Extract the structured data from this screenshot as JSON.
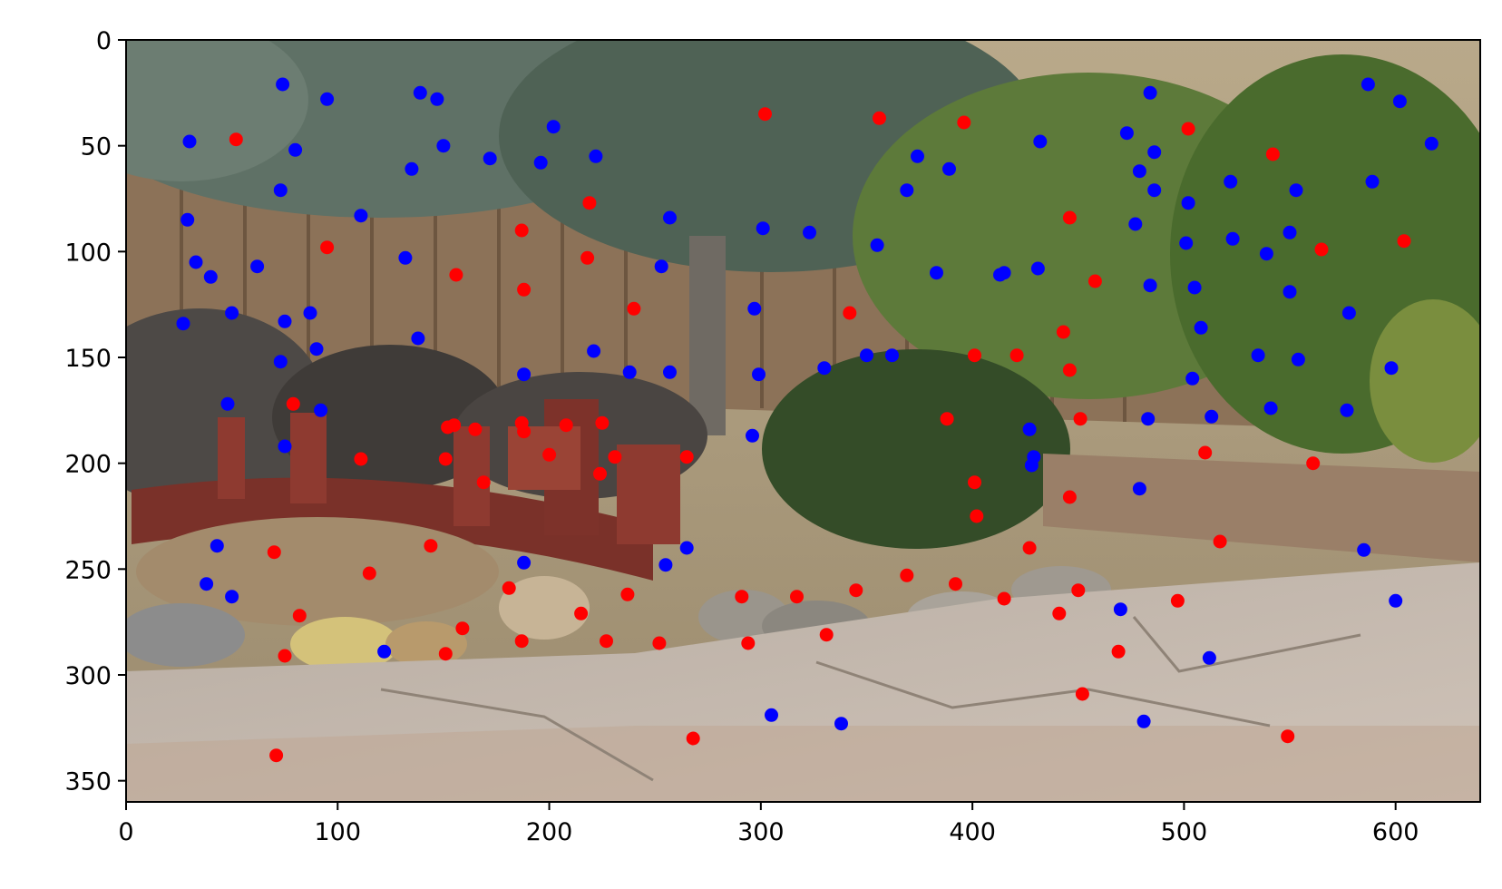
{
  "chart_data": {
    "type": "scatter",
    "title": "",
    "xlabel": "",
    "ylabel": "",
    "xlim": [
      0,
      640
    ],
    "ylim": [
      360,
      0
    ],
    "y_inverted": true,
    "grid": false,
    "background": "photograph of a backyard Japanese garden with a red wooden bridge, lantern, shrubs, fence, tree and stone patio",
    "x_ticks": [
      0,
      100,
      200,
      300,
      400,
      500,
      600
    ],
    "y_ticks": [
      0,
      50,
      100,
      150,
      200,
      250,
      300,
      350
    ],
    "x_tick_labels": [
      "0",
      "100",
      "200",
      "300",
      "400",
      "500",
      "600"
    ],
    "y_tick_labels": [
      "0",
      "50",
      "100",
      "150",
      "200",
      "250",
      "300",
      "350"
    ],
    "series": [
      {
        "color": "#ff0000",
        "points": [
          [
            52,
            47
          ],
          [
            95,
            98
          ],
          [
            156,
            111
          ],
          [
            187,
            90
          ],
          [
            188,
            118
          ],
          [
            219,
            77
          ],
          [
            218,
            103
          ],
          [
            240,
            127
          ],
          [
            302,
            35
          ],
          [
            356,
            37
          ],
          [
            396,
            39
          ],
          [
            342,
            129
          ],
          [
            401,
            149
          ],
          [
            421,
            149
          ],
          [
            446,
            84
          ],
          [
            458,
            114
          ],
          [
            443,
            138
          ],
          [
            446,
            156
          ],
          [
            451,
            179
          ],
          [
            502,
            42
          ],
          [
            542,
            54
          ],
          [
            565,
            99
          ],
          [
            604,
            95
          ],
          [
            388,
            179
          ],
          [
            401,
            209
          ],
          [
            402,
            225
          ],
          [
            446,
            216
          ],
          [
            510,
            195
          ],
          [
            561,
            200
          ],
          [
            79,
            172
          ],
          [
            111,
            198
          ],
          [
            152,
            183
          ],
          [
            155,
            182
          ],
          [
            165,
            184
          ],
          [
            151,
            198
          ],
          [
            169,
            209
          ],
          [
            187,
            181
          ],
          [
            188,
            185
          ],
          [
            200,
            196
          ],
          [
            208,
            182
          ],
          [
            225,
            181
          ],
          [
            231,
            197
          ],
          [
            224,
            205
          ],
          [
            265,
            197
          ],
          [
            70,
            242
          ],
          [
            115,
            252
          ],
          [
            144,
            239
          ],
          [
            82,
            272
          ],
          [
            75,
            291
          ],
          [
            159,
            278
          ],
          [
            151,
            290
          ],
          [
            181,
            259
          ],
          [
            187,
            284
          ],
          [
            215,
            271
          ],
          [
            237,
            262
          ],
          [
            227,
            284
          ],
          [
            252,
            285
          ],
          [
            291,
            263
          ],
          [
            294,
            285
          ],
          [
            317,
            263
          ],
          [
            331,
            281
          ],
          [
            345,
            260
          ],
          [
            369,
            253
          ],
          [
            392,
            257
          ],
          [
            415,
            264
          ],
          [
            427,
            240
          ],
          [
            441,
            271
          ],
          [
            450,
            260
          ],
          [
            469,
            289
          ],
          [
            452,
            309
          ],
          [
            517,
            237
          ],
          [
            497,
            265
          ],
          [
            549,
            329
          ],
          [
            268,
            330
          ],
          [
            71,
            338
          ]
        ]
      },
      {
        "color": "#0000ff",
        "points": [
          [
            74,
            21
          ],
          [
            95,
            28
          ],
          [
            139,
            25
          ],
          [
            147,
            28
          ],
          [
            30,
            48
          ],
          [
            80,
            52
          ],
          [
            150,
            50
          ],
          [
            172,
            56
          ],
          [
            202,
            41
          ],
          [
            196,
            58
          ],
          [
            222,
            55
          ],
          [
            135,
            61
          ],
          [
            73,
            71
          ],
          [
            111,
            83
          ],
          [
            29,
            85
          ],
          [
            257,
            84
          ],
          [
            301,
            89
          ],
          [
            323,
            91
          ],
          [
            374,
            55
          ],
          [
            389,
            61
          ],
          [
            369,
            71
          ],
          [
            432,
            48
          ],
          [
            473,
            44
          ],
          [
            484,
            25
          ],
          [
            486,
            53
          ],
          [
            479,
            62
          ],
          [
            486,
            71
          ],
          [
            502,
            77
          ],
          [
            522,
            67
          ],
          [
            553,
            71
          ],
          [
            589,
            67
          ],
          [
            587,
            21
          ],
          [
            602,
            29
          ],
          [
            617,
            49
          ],
          [
            33,
            105
          ],
          [
            40,
            112
          ],
          [
            62,
            107
          ],
          [
            132,
            103
          ],
          [
            253,
            107
          ],
          [
            355,
            97
          ],
          [
            501,
            96
          ],
          [
            477,
            87
          ],
          [
            523,
            94
          ],
          [
            539,
            101
          ],
          [
            550,
            91
          ],
          [
            27,
            134
          ],
          [
            50,
            129
          ],
          [
            75,
            133
          ],
          [
            87,
            129
          ],
          [
            138,
            141
          ],
          [
            73,
            152
          ],
          [
            90,
            146
          ],
          [
            297,
            127
          ],
          [
            383,
            110
          ],
          [
            413,
            111
          ],
          [
            415,
            110
          ],
          [
            431,
            108
          ],
          [
            484,
            116
          ],
          [
            505,
            117
          ],
          [
            550,
            119
          ],
          [
            578,
            129
          ],
          [
            508,
            136
          ],
          [
            188,
            158
          ],
          [
            221,
            147
          ],
          [
            238,
            157
          ],
          [
            257,
            157
          ],
          [
            299,
            158
          ],
          [
            330,
            155
          ],
          [
            350,
            149
          ],
          [
            362,
            149
          ],
          [
            504,
            160
          ],
          [
            535,
            149
          ],
          [
            554,
            151
          ],
          [
            598,
            155
          ],
          [
            48,
            172
          ],
          [
            92,
            175
          ],
          [
            75,
            192
          ],
          [
            296,
            187
          ],
          [
            427,
            184
          ],
          [
            483,
            179
          ],
          [
            513,
            178
          ],
          [
            541,
            174
          ],
          [
            577,
            175
          ],
          [
            428,
            201
          ],
          [
            429,
            197
          ],
          [
            479,
            212
          ],
          [
            43,
            239
          ],
          [
            38,
            257
          ],
          [
            50,
            263
          ],
          [
            122,
            289
          ],
          [
            188,
            247
          ],
          [
            265,
            240
          ],
          [
            255,
            248
          ],
          [
            470,
            269
          ],
          [
            512,
            292
          ],
          [
            585,
            241
          ],
          [
            600,
            265
          ],
          [
            305,
            319
          ],
          [
            338,
            323
          ],
          [
            481,
            322
          ]
        ]
      }
    ]
  }
}
